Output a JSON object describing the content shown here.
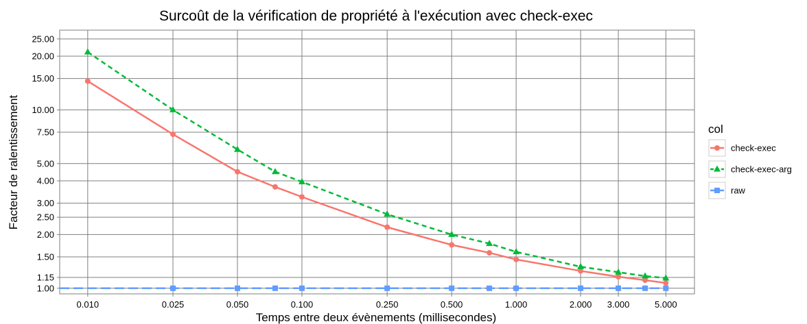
{
  "chart_data": {
    "type": "line",
    "title": "Surcoût de la vérification de propriété à l'exécution avec check-exec",
    "xlabel": "Temps entre deux évènements (millisecondes)",
    "ylabel": "Facteur de ralentissement",
    "x_scale": "log",
    "y_scale": "log",
    "xlim": [
      0.0074,
      6.8
    ],
    "ylim": [
      0.93,
      28
    ],
    "x_ticks": [
      0.01,
      0.025,
      0.05,
      0.1,
      0.25,
      0.5,
      1,
      2,
      3,
      5
    ],
    "x_tick_labels": [
      "0.010",
      "0.025",
      "0.050",
      "0.100",
      "0.250",
      "0.500",
      "1.000",
      "2.000",
      "3.000",
      "5.000"
    ],
    "y_ticks": [
      1,
      1.15,
      1.5,
      2,
      2.5,
      3,
      4,
      5,
      7.5,
      10,
      15,
      20,
      25
    ],
    "y_tick_labels": [
      "1.00",
      "1.15",
      "1.50",
      "2.00",
      "2.50",
      "3.00",
      "4.00",
      "5.00",
      "7.50",
      "10.00",
      "15.00",
      "20.00",
      "25.00"
    ],
    "grid": true,
    "legend": {
      "title": "col",
      "position": "right"
    },
    "series": [
      {
        "name": "check-exec",
        "color": "#f8766d",
        "marker": "circle",
        "dash": "solid",
        "x": [
          0.01,
          0.025,
          0.05,
          0.075,
          0.1,
          0.25,
          0.5,
          0.75,
          1,
          2,
          3,
          4,
          5
        ],
        "y": [
          14.5,
          7.3,
          4.5,
          3.7,
          3.25,
          2.2,
          1.75,
          1.58,
          1.45,
          1.25,
          1.16,
          1.11,
          1.07
        ]
      },
      {
        "name": "check-exec-arg",
        "color": "#00ba38",
        "marker": "triangle",
        "dash": "dashed",
        "x": [
          0.01,
          0.025,
          0.05,
          0.075,
          0.1,
          0.25,
          0.5,
          0.75,
          1,
          2,
          3,
          4,
          5
        ],
        "y": [
          21.1,
          10.0,
          6.0,
          4.5,
          3.95,
          2.6,
          2.0,
          1.78,
          1.6,
          1.32,
          1.23,
          1.17,
          1.14
        ]
      },
      {
        "name": "raw",
        "color": "#619cff",
        "marker": "square",
        "dash": "longdash",
        "x": [
          0.0074,
          0.025,
          0.05,
          0.075,
          0.1,
          0.25,
          0.5,
          0.75,
          1,
          2,
          3,
          4,
          5
        ],
        "y": [
          1,
          1,
          1,
          1,
          1,
          1,
          1,
          1,
          1,
          1,
          1,
          1,
          1
        ]
      }
    ]
  }
}
